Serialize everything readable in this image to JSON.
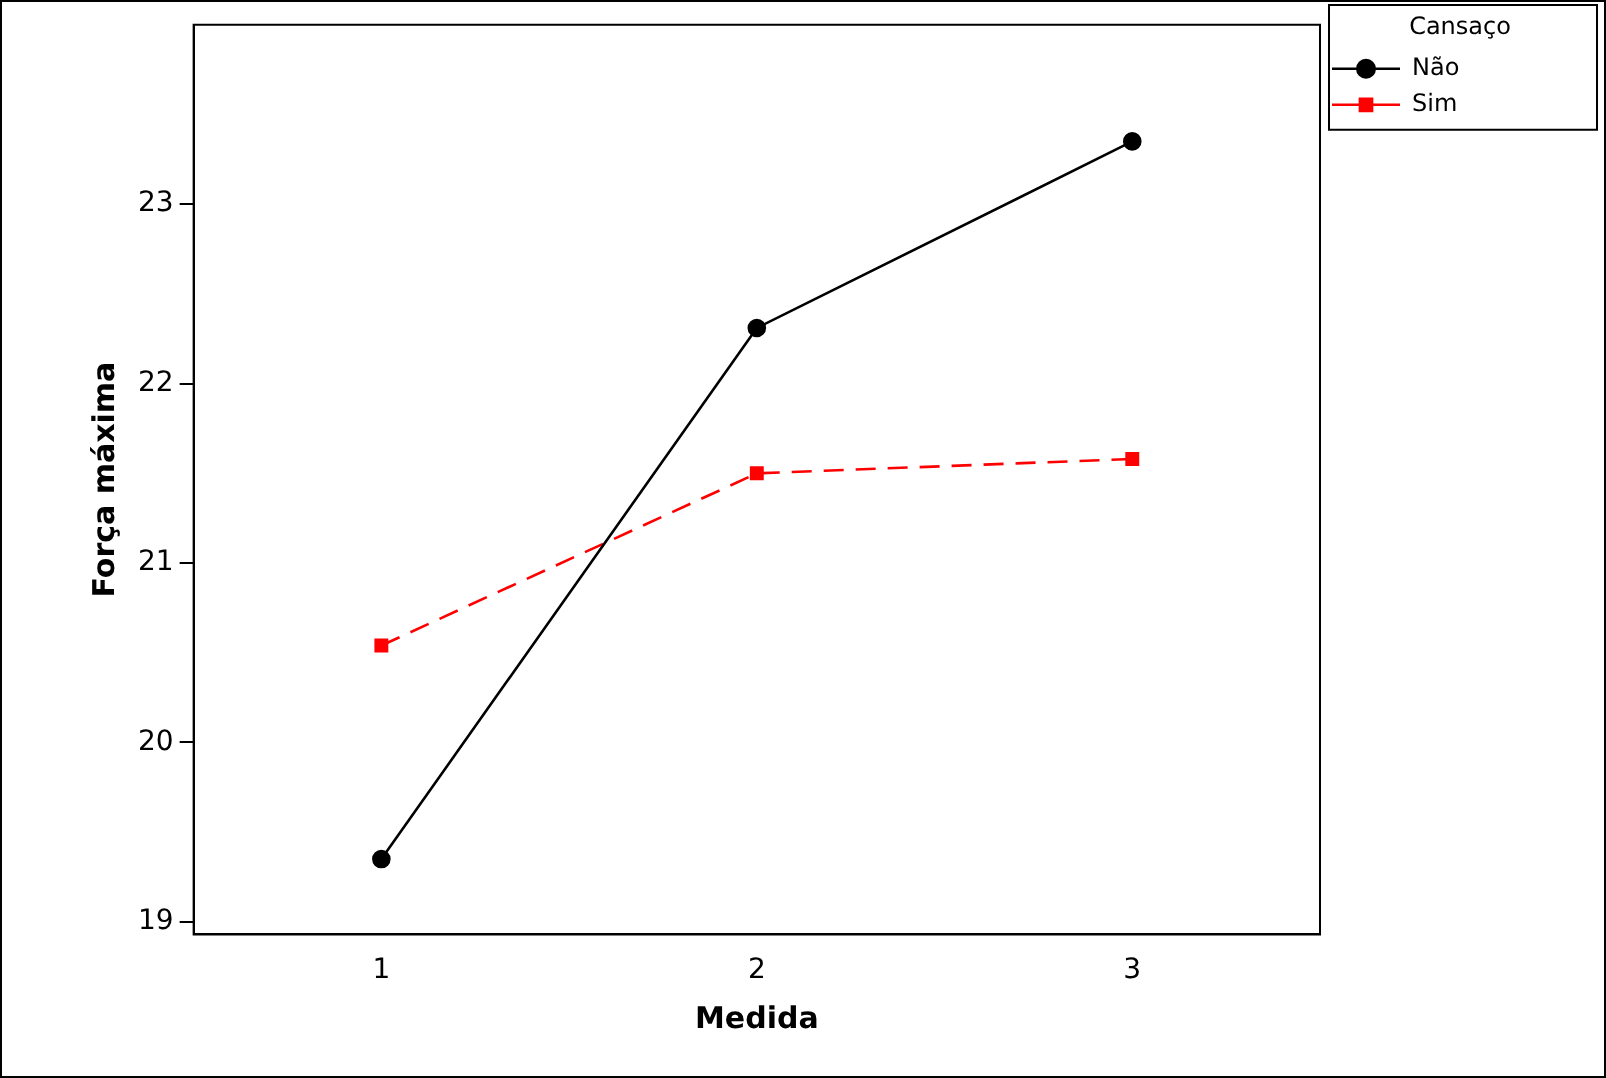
{
  "chart_data": {
    "type": "line",
    "xlabel": "Medida",
    "ylabel": "Força máxima",
    "legend_title": "Cansaço",
    "legend": "top right",
    "grid": false,
    "x": [
      1,
      2,
      3
    ],
    "xlim": [
      0.5,
      3.5
    ],
    "xticks": [
      1,
      2,
      3
    ],
    "ylim": [
      18.93,
      24.0
    ],
    "yticks": [
      19,
      20,
      21,
      22,
      23
    ],
    "series": [
      {
        "name": "Não",
        "color": "#000000",
        "values": [
          19.35,
          22.31,
          23.35
        ],
        "marker": "circle",
        "line_style": "solid"
      },
      {
        "name": "Sim",
        "color": "#ff0000",
        "values": [
          20.54,
          21.5,
          21.58
        ],
        "marker": "square",
        "line_style": "dashed"
      }
    ]
  }
}
